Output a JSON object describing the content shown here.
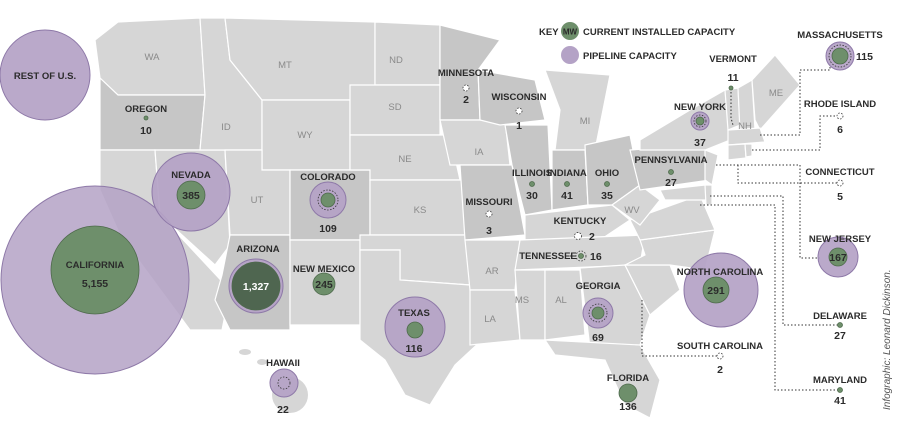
{
  "legend": {
    "key_label": "KEY",
    "mw_marker": "MW",
    "current_label": "CURRENT INSTALLED CAPACITY",
    "pipeline_label": "PIPELINE CAPACITY"
  },
  "credit": "Infographic: Leonard Dickinson.",
  "colors": {
    "land": "#d6d6d6",
    "land_shaded": "#c6c6c6",
    "ocean": "#ffffff",
    "current": "#6e8f6b",
    "pipeline": "#b4a2c6",
    "pipeline_stroke": "#8e79a8"
  },
  "rest_of_us": {
    "label": "REST OF U.S."
  },
  "map_data": {
    "type": "proportional-symbol map",
    "states": [
      {
        "name": "CALIFORNIA",
        "value": "5,155"
      },
      {
        "name": "NEVADA",
        "value": "385"
      },
      {
        "name": "ARIZONA",
        "value": "1,327"
      },
      {
        "name": "NEW MEXICO",
        "value": "245"
      },
      {
        "name": "COLORADO",
        "value": "109"
      },
      {
        "name": "TEXAS",
        "value": "116"
      },
      {
        "name": "OREGON",
        "value": "10"
      },
      {
        "name": "HAWAII",
        "value": "22"
      },
      {
        "name": "MINNESOTA",
        "value": "2"
      },
      {
        "name": "WISCONSIN",
        "value": "1"
      },
      {
        "name": "ILLINOIS",
        "value": "30"
      },
      {
        "name": "INDIANA",
        "value": "41"
      },
      {
        "name": "OHIO",
        "value": "35"
      },
      {
        "name": "MISSOURI",
        "value": "3"
      },
      {
        "name": "KENTUCKY",
        "value": "2"
      },
      {
        "name": "TENNESSEE",
        "value": "16"
      },
      {
        "name": "PENNSYLVANIA",
        "value": "27"
      },
      {
        "name": "NEW YORK",
        "value": "37"
      },
      {
        "name": "GEORGIA",
        "value": "69"
      },
      {
        "name": "FLORIDA",
        "value": "136"
      },
      {
        "name": "NORTH CAROLINA",
        "value": "291"
      },
      {
        "name": "SOUTH CAROLINA",
        "value": "2"
      },
      {
        "name": "VERMONT",
        "value": "11"
      },
      {
        "name": "MASSACHUSETTS",
        "value": "115"
      },
      {
        "name": "RHODE ISLAND",
        "value": "6"
      },
      {
        "name": "CONNECTICUT",
        "value": "5"
      },
      {
        "name": "NEW JERSEY",
        "value": "167"
      },
      {
        "name": "DELAWARE",
        "value": "27"
      },
      {
        "name": "MARYLAND",
        "value": "41"
      }
    ],
    "abbreviations": [
      "WA",
      "MT",
      "ND",
      "SD",
      "ID",
      "WY",
      "NE",
      "IA",
      "MI",
      "UT",
      "KS",
      "WV",
      "NH",
      "ME",
      "AR",
      "MS",
      "AL",
      "LA"
    ]
  }
}
